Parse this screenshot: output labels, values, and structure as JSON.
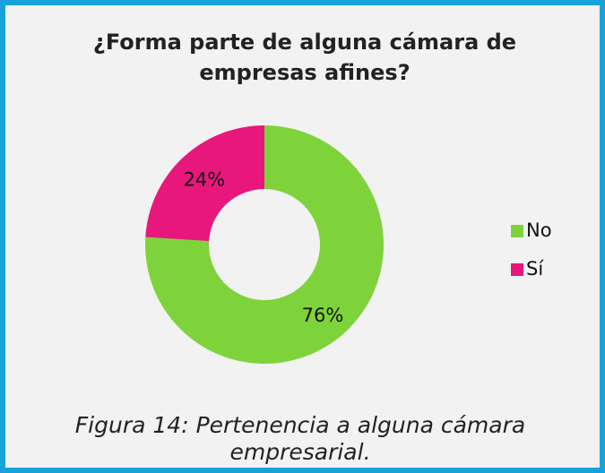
{
  "chart_data": {
    "type": "donut",
    "title": "¿Forma parte de alguna cámara de empresas afines?",
    "categories": [
      "No",
      "Sí"
    ],
    "values": [
      76,
      24
    ],
    "value_labels": [
      "76%",
      "24%"
    ],
    "colors": [
      "#7ed33b",
      "#e8177b"
    ],
    "legend": "right"
  },
  "caption": "Figura 14: Pertenencia a alguna cámara empresarial."
}
